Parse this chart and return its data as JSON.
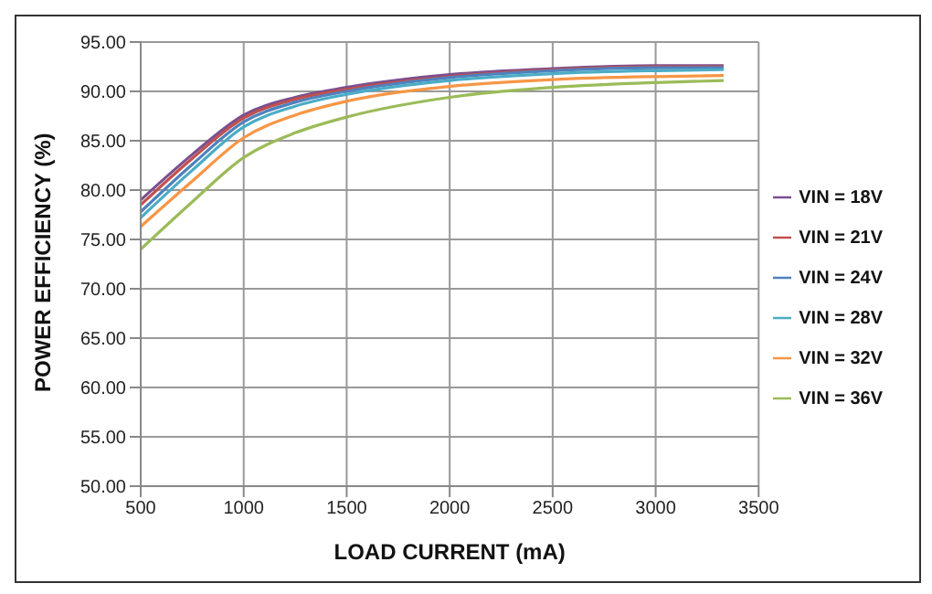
{
  "chart_data": {
    "type": "line",
    "xlabel": "LOAD CURRENT (mA)",
    "ylabel": "POWER EFFICIENCY (%)",
    "x": [
      500,
      750,
      1000,
      1250,
      1500,
      2000,
      2500,
      3000,
      3330
    ],
    "series": [
      {
        "name": "VIN = 18V",
        "color": "#7b4f8f",
        "values": [
          79.0,
          83.6,
          87.6,
          89.4,
          90.4,
          91.7,
          92.3,
          92.6,
          92.6
        ]
      },
      {
        "name": "VIN = 21V",
        "color": "#c0504d",
        "values": [
          78.5,
          83.2,
          87.3,
          89.2,
          90.2,
          91.5,
          92.2,
          92.5,
          92.5
        ]
      },
      {
        "name": "VIN = 24V",
        "color": "#4f81bd",
        "values": [
          77.8,
          82.6,
          86.9,
          88.9,
          90.0,
          91.4,
          92.1,
          92.4,
          92.4
        ]
      },
      {
        "name": "VIN = 28V",
        "color": "#4bacc6",
        "values": [
          77.2,
          82.0,
          86.4,
          88.5,
          89.7,
          91.1,
          91.8,
          92.1,
          92.2
        ]
      },
      {
        "name": "VIN = 32V",
        "color": "#f79646",
        "values": [
          76.3,
          80.9,
          85.3,
          87.6,
          89.0,
          90.5,
          91.2,
          91.5,
          91.6
        ]
      },
      {
        "name": "VIN = 36V",
        "color": "#9bbb59",
        "values": [
          74.0,
          78.8,
          83.3,
          85.8,
          87.4,
          89.4,
          90.4,
          90.9,
          91.1
        ]
      }
    ],
    "xlim": [
      500,
      3500
    ],
    "xticks": [
      500,
      1000,
      1500,
      2000,
      2500,
      3000,
      3500
    ],
    "ylim": [
      50,
      95
    ],
    "yticks": [
      {
        "value": 50,
        "label": "50.00"
      },
      {
        "value": 55,
        "label": "55.00"
      },
      {
        "value": 60,
        "label": "60.00"
      },
      {
        "value": 65,
        "label": "65.00"
      },
      {
        "value": 70,
        "label": "70.00"
      },
      {
        "value": 75,
        "label": "75.00"
      },
      {
        "value": 80,
        "label": "80.00"
      },
      {
        "value": 85,
        "label": "85.00"
      },
      {
        "value": 90,
        "label": "90.00"
      },
      {
        "value": 95,
        "label": "95.00"
      }
    ],
    "grid": true,
    "legend": "right",
    "marker": "none",
    "line_style": "solid"
  }
}
